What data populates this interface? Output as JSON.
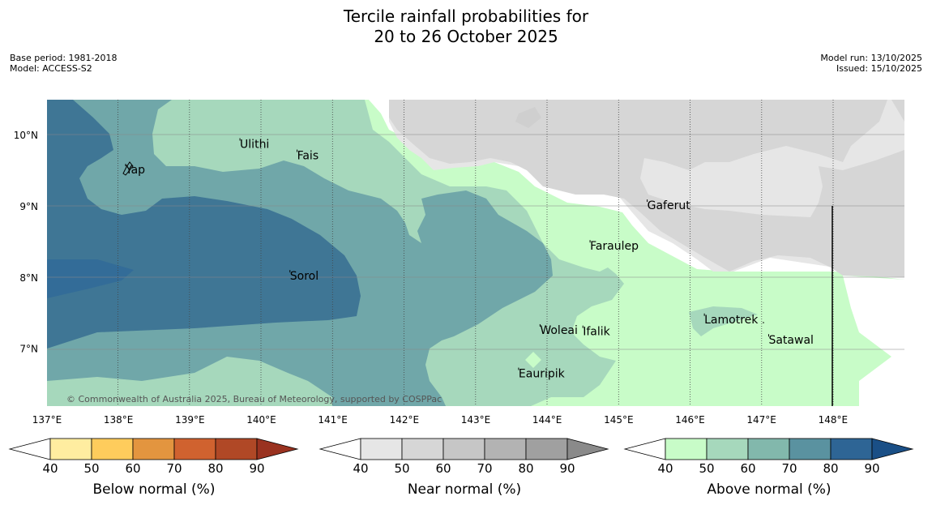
{
  "title": {
    "line1": "Tercile rainfall probabilities for",
    "line2": "20 to 26 October 2025"
  },
  "meta_left": {
    "base_period": "Base period: 1981-2018",
    "model": "Model: ACCESS-S2"
  },
  "meta_right": {
    "model_run": "Model run: 13/10/2025",
    "issued": "Issued: 15/10/2025"
  },
  "map": {
    "lon_range": [
      137,
      149
    ],
    "lat_range": [
      6.2,
      10.5
    ],
    "lon_ticks": [
      "137°E",
      "138°E",
      "139°E",
      "140°E",
      "141°E",
      "142°E",
      "143°E",
      "144°E",
      "145°E",
      "146°E",
      "147°E",
      "148°E"
    ],
    "lat_ticks": [
      "10°N",
      "9°N",
      "8°N",
      "7°N"
    ],
    "credit": "© Commonwealth of Australia 2025, Bureau of Meteorology, supported by COSPPac",
    "places": [
      {
        "name": "Yap",
        "lon": 138.1,
        "lat": 9.52
      },
      {
        "name": "Ulithi",
        "lon": 139.7,
        "lat": 9.88
      },
      {
        "name": "Fais",
        "lon": 140.5,
        "lat": 9.72
      },
      {
        "name": "Gaferut",
        "lon": 145.4,
        "lat": 9.02
      },
      {
        "name": "Faraulep",
        "lon": 144.6,
        "lat": 8.45
      },
      {
        "name": "Sorol",
        "lon": 140.4,
        "lat": 8.03
      },
      {
        "name": "Woleai",
        "lon": 143.9,
        "lat": 7.27
      },
      {
        "name": "Ifalik",
        "lon": 144.5,
        "lat": 7.25
      },
      {
        "name": "Lamotrek",
        "lon": 146.2,
        "lat": 7.42
      },
      {
        "name": "Satawal",
        "lon": 147.1,
        "lat": 7.13
      },
      {
        "name": "Eauripik",
        "lon": 143.6,
        "lat": 6.66
      }
    ]
  },
  "legend": {
    "below": {
      "label": "Below normal (%)",
      "ticks": [
        "40",
        "50",
        "60",
        "70",
        "80",
        "90"
      ],
      "colors": [
        "#ffeda0",
        "#fecc5c",
        "#e3953f",
        "#d0622f",
        "#b04826",
        "#9a3220"
      ]
    },
    "near": {
      "label": "Near normal (%)",
      "ticks": [
        "40",
        "50",
        "60",
        "70",
        "80",
        "90"
      ],
      "colors": [
        "#e6e6e6",
        "#d6d6d6",
        "#c6c6c6",
        "#b3b3b3",
        "#a0a0a0",
        "#8a8a8a"
      ]
    },
    "above": {
      "label": "Above normal (%)",
      "ticks": [
        "40",
        "50",
        "60",
        "70",
        "80",
        "90"
      ],
      "colors": [
        "#c8fcc8",
        "#a6d8bc",
        "#82b8ac",
        "#5a92a0",
        "#2e6595",
        "#1a4f86"
      ]
    }
  }
}
